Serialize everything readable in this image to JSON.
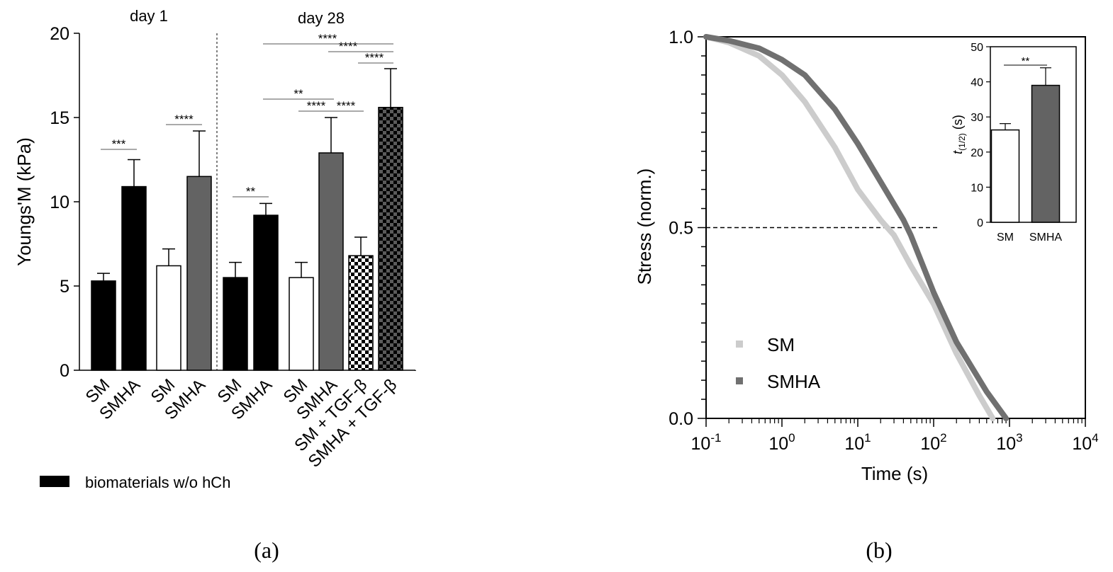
{
  "panel_labels": {
    "a": "(a)",
    "b": "(b)"
  },
  "chart_data": [
    {
      "type": "bar",
      "groups": [
        {
          "label": "day 1",
          "bars": [
            0,
            1,
            2,
            3
          ]
        },
        {
          "label": "day 28",
          "bars": [
            4,
            5,
            6,
            7,
            8,
            9
          ]
        }
      ],
      "categories": [
        "SM",
        "SMHA",
        "SM",
        "SMHA",
        "SM",
        "SMHA",
        "SM",
        "SMHA",
        "SM + TGF-β",
        "SMHA + TGF-β"
      ],
      "values": [
        5.3,
        10.9,
        6.2,
        11.5,
        5.5,
        9.2,
        5.5,
        12.9,
        6.8,
        15.6
      ],
      "errors": [
        0.45,
        1.6,
        1.0,
        2.7,
        0.9,
        0.7,
        0.9,
        2.1,
        1.1,
        2.3
      ],
      "fills": [
        "black",
        "black",
        "white",
        "gray",
        "black",
        "black",
        "white",
        "gray",
        "checker",
        "darkchecker"
      ],
      "ylabel": "Youngs'M (kPa)",
      "ylim": [
        0,
        20
      ],
      "yticks": [
        "0",
        "5",
        "10",
        "15",
        "20"
      ],
      "legend": {
        "label": "biomaterials w/o hCh",
        "color": "#000000",
        "placement": "bottom-left"
      },
      "significance": [
        {
          "from": 0,
          "to": 1,
          "label": "***"
        },
        {
          "from": 2,
          "to": 3,
          "label": "****"
        },
        {
          "from": 4,
          "to": 5,
          "label": "**"
        },
        {
          "from": 5,
          "to": 7,
          "label": "**"
        },
        {
          "from": 6,
          "to": 7,
          "label": "****"
        },
        {
          "from": 7,
          "to": 8,
          "label": "****"
        },
        {
          "from": 5,
          "to": 9,
          "label": "****"
        },
        {
          "from": 7,
          "to": 9,
          "label": "****"
        },
        {
          "from": 8,
          "to": 9,
          "label": "****"
        }
      ],
      "colors": {
        "gray": "#636363"
      }
    },
    {
      "type": "line",
      "xscale": "log",
      "xlabel": "Time (s)",
      "ylabel": "Stress (norm.)",
      "xlim": [
        0.1,
        10000
      ],
      "ylim": [
        0,
        1
      ],
      "xticks": [
        {
          "base": "10",
          "exp": "-1"
        },
        {
          "base": "10",
          "exp": "0"
        },
        {
          "base": "10",
          "exp": "1"
        },
        {
          "base": "10",
          "exp": "2"
        },
        {
          "base": "10",
          "exp": "3"
        },
        {
          "base": "10",
          "exp": "4"
        }
      ],
      "yticks": [
        "0.0",
        "0.5",
        "1.0"
      ],
      "reference_line": {
        "y": 0.5,
        "style": "dashed"
      },
      "series": [
        {
          "name": "SM",
          "color": "#cccccc",
          "x": [
            0.1,
            0.2,
            0.5,
            1,
            2,
            5,
            10,
            20,
            30,
            50,
            100,
            200,
            400,
            600
          ],
          "y": [
            1.0,
            0.985,
            0.95,
            0.9,
            0.83,
            0.71,
            0.6,
            0.52,
            0.48,
            0.4,
            0.3,
            0.17,
            0.06,
            0.0
          ]
        },
        {
          "name": "SMHA",
          "color": "#707070",
          "x": [
            0.1,
            0.2,
            0.5,
            1,
            2,
            5,
            10,
            20,
            40,
            50,
            100,
            200,
            500,
            900
          ],
          "y": [
            1.0,
            0.99,
            0.97,
            0.94,
            0.9,
            0.81,
            0.72,
            0.62,
            0.52,
            0.48,
            0.33,
            0.2,
            0.07,
            0.0
          ]
        }
      ],
      "legend": {
        "placement": "bottom-left",
        "entries": [
          "SM",
          "SMHA"
        ]
      },
      "inset": {
        "type": "bar",
        "categories": [
          "SM",
          "SMHA"
        ],
        "values": [
          26.3,
          39.0
        ],
        "errors": [
          1.8,
          5.0
        ],
        "fills": [
          "#ffffff",
          "#636363"
        ],
        "ylabel_base": "t",
        "ylabel_sub": "(1/2)",
        "ylabel_unit": " (s)",
        "ylim": [
          0,
          50
        ],
        "yticks": [
          "0",
          "10",
          "20",
          "30",
          "40",
          "50"
        ],
        "significance": [
          {
            "from": 0,
            "to": 1,
            "label": "**"
          }
        ]
      }
    }
  ]
}
